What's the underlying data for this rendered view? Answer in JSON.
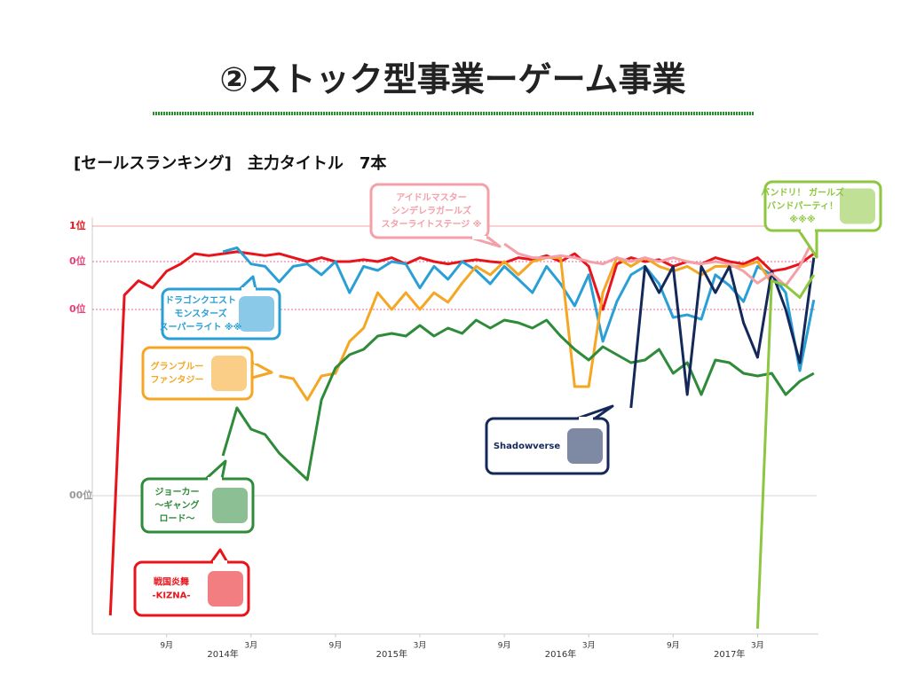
{
  "chart_data": {
    "type": "line",
    "title": "②ストック型事業ーゲーム事業",
    "subtitle": "[セールスランキング]　主力タイトル　7本",
    "x": [
      -2,
      -1,
      0,
      1,
      2,
      3,
      4,
      5,
      6,
      7,
      8,
      9,
      10,
      11,
      12,
      13,
      14,
      15,
      16,
      17,
      18,
      19,
      20,
      21,
      22,
      23,
      24,
      25,
      26,
      27,
      28,
      29,
      30,
      31,
      32,
      33,
      34,
      35,
      36,
      37,
      38,
      39,
      40,
      41,
      42,
      43,
      44,
      45,
      46,
      47,
      48
    ],
    "xlim": [
      -3.28,
      48.2
    ],
    "xticks": [
      {
        "value": 2,
        "label": "9月"
      },
      {
        "value": 8,
        "label": "3月"
      },
      {
        "value": 14,
        "label": "9月"
      },
      {
        "value": 20,
        "label": "3月"
      },
      {
        "value": 26,
        "label": "9月"
      },
      {
        "value": 32,
        "label": "3月"
      },
      {
        "value": 38,
        "label": "9月"
      },
      {
        "value": 44,
        "label": "3月"
      }
    ],
    "year_ticks": [
      {
        "value": 6,
        "label": "2014年"
      },
      {
        "value": 18,
        "label": "2015年"
      },
      {
        "value": 30,
        "label": "2016年"
      },
      {
        "value": 42,
        "label": "2017年"
      }
    ],
    "ylim": [
      1,
      152
    ],
    "yticks": [
      {
        "value": 1,
        "label": "1位",
        "color": "#e8141c"
      },
      {
        "value": 10,
        "label": "0位",
        "color": "#e8407a"
      },
      {
        "value": 30,
        "label": "0位",
        "color": "#e8407a"
      },
      {
        "value": 100,
        "label": "00位",
        "color": "#999999"
      }
    ],
    "y_reversed": true,
    "grid": true,
    "series": [
      {
        "callout": [
          "戦国炎舞",
          "-KIZNA-"
        ],
        "color": "#e8141c",
        "values": [
          145,
          24,
          18,
          21,
          14,
          11,
          8,
          8.5,
          8,
          7.5,
          8,
          8.5,
          8,
          9,
          10,
          9,
          10,
          10,
          9.5,
          10,
          9,
          11,
          9,
          10,
          11,
          10,
          9.5,
          10,
          10.5,
          9,
          9.5,
          8.5,
          10,
          8,
          12,
          30,
          11,
          9,
          10,
          9.5,
          12,
          10,
          11,
          9,
          10,
          11,
          9,
          14,
          13,
          11,
          8
        ]
      },
      {
        "callout": [
          "ドラゴンクエスト",
          "モンスターズ",
          "スーパーライト ※※"
        ],
        "color": "#2a9fd6",
        "values": [
          null,
          null,
          null,
          null,
          null,
          null,
          null,
          null,
          7.5,
          6.5,
          11,
          12,
          18.5,
          12,
          11,
          15.5,
          10,
          23,
          12,
          13.7,
          10,
          11,
          21,
          12,
          17.4,
          10,
          13.7,
          19.3,
          12,
          17.4,
          23,
          12,
          19.3,
          28.5,
          15.5,
          42,
          26.7,
          15.5,
          12,
          19.3,
          33,
          32,
          33.7,
          15.5,
          20,
          26.7,
          12,
          15.5,
          23,
          53,
          26
        ]
      },
      {
        "callout": [
          "グランブルー",
          "ファンタジー"
        ],
        "color": "#f5a623",
        "values": [
          null,
          null,
          null,
          null,
          null,
          null,
          null,
          null,
          null,
          null,
          null,
          null,
          55,
          56,
          64,
          55,
          54,
          42,
          37,
          23,
          30,
          23,
          30,
          23,
          27,
          19,
          12,
          15.5,
          10,
          15.5,
          10,
          9,
          9,
          59,
          59,
          23,
          9,
          12,
          9,
          12,
          14,
          12,
          15.5,
          12,
          12,
          12,
          10,
          19,
          null,
          null,
          null
        ]
      },
      {
        "callout": [
          "ジョーカー",
          "〜ギャング",
          "ロード〜"
        ],
        "color": "#2e8b3a",
        "values": [
          null,
          null,
          null,
          null,
          null,
          null,
          null,
          null,
          85,
          67,
          75,
          77,
          84,
          89,
          94,
          64,
          52,
          47,
          45,
          40,
          39,
          40,
          36,
          40,
          37,
          39,
          34,
          37,
          34,
          35,
          37,
          34,
          40,
          45,
          49,
          44,
          47,
          50,
          49,
          45,
          54,
          50,
          62,
          49,
          50,
          54,
          55,
          54,
          62,
          57,
          54
        ]
      },
      {
        "callout": [
          "Shadowverse"
        ],
        "color": "#14285a",
        "values": [
          null,
          null,
          null,
          null,
          null,
          null,
          null,
          null,
          null,
          null,
          null,
          null,
          null,
          null,
          null,
          null,
          null,
          null,
          null,
          null,
          null,
          null,
          null,
          null,
          null,
          null,
          null,
          null,
          null,
          null,
          null,
          null,
          null,
          null,
          null,
          null,
          null,
          67,
          12,
          23,
          12,
          62,
          12,
          23,
          12,
          35,
          48,
          14,
          30,
          50,
          9
        ]
      },
      {
        "callout": [
          "アイドルマスター",
          "シンデレラガールズ",
          "スターライトステージ ※"
        ],
        "color": "#f4a0a8",
        "values": [
          null,
          null,
          null,
          null,
          null,
          null,
          null,
          null,
          null,
          null,
          null,
          null,
          null,
          null,
          null,
          null,
          null,
          null,
          null,
          null,
          null,
          null,
          null,
          null,
          null,
          null,
          null,
          null,
          5.5,
          8,
          9,
          9,
          8.5,
          9,
          10,
          11,
          9,
          10,
          9,
          10,
          9,
          10,
          11,
          10,
          11,
          14,
          19,
          15,
          20,
          12,
          4
        ]
      },
      {
        "callout": [
          "バンドリ！ ガールズ",
          "バンドパーティ！",
          "※※※"
        ],
        "color": "#8dc63f",
        "values": [
          null,
          null,
          null,
          null,
          null,
          null,
          null,
          null,
          null,
          null,
          null,
          null,
          null,
          null,
          null,
          null,
          null,
          null,
          null,
          null,
          null,
          null,
          null,
          null,
          null,
          null,
          null,
          null,
          null,
          null,
          null,
          null,
          null,
          null,
          null,
          null,
          null,
          null,
          null,
          null,
          null,
          null,
          null,
          null,
          null,
          null,
          150,
          18,
          20,
          25,
          15.5
        ]
      }
    ]
  }
}
